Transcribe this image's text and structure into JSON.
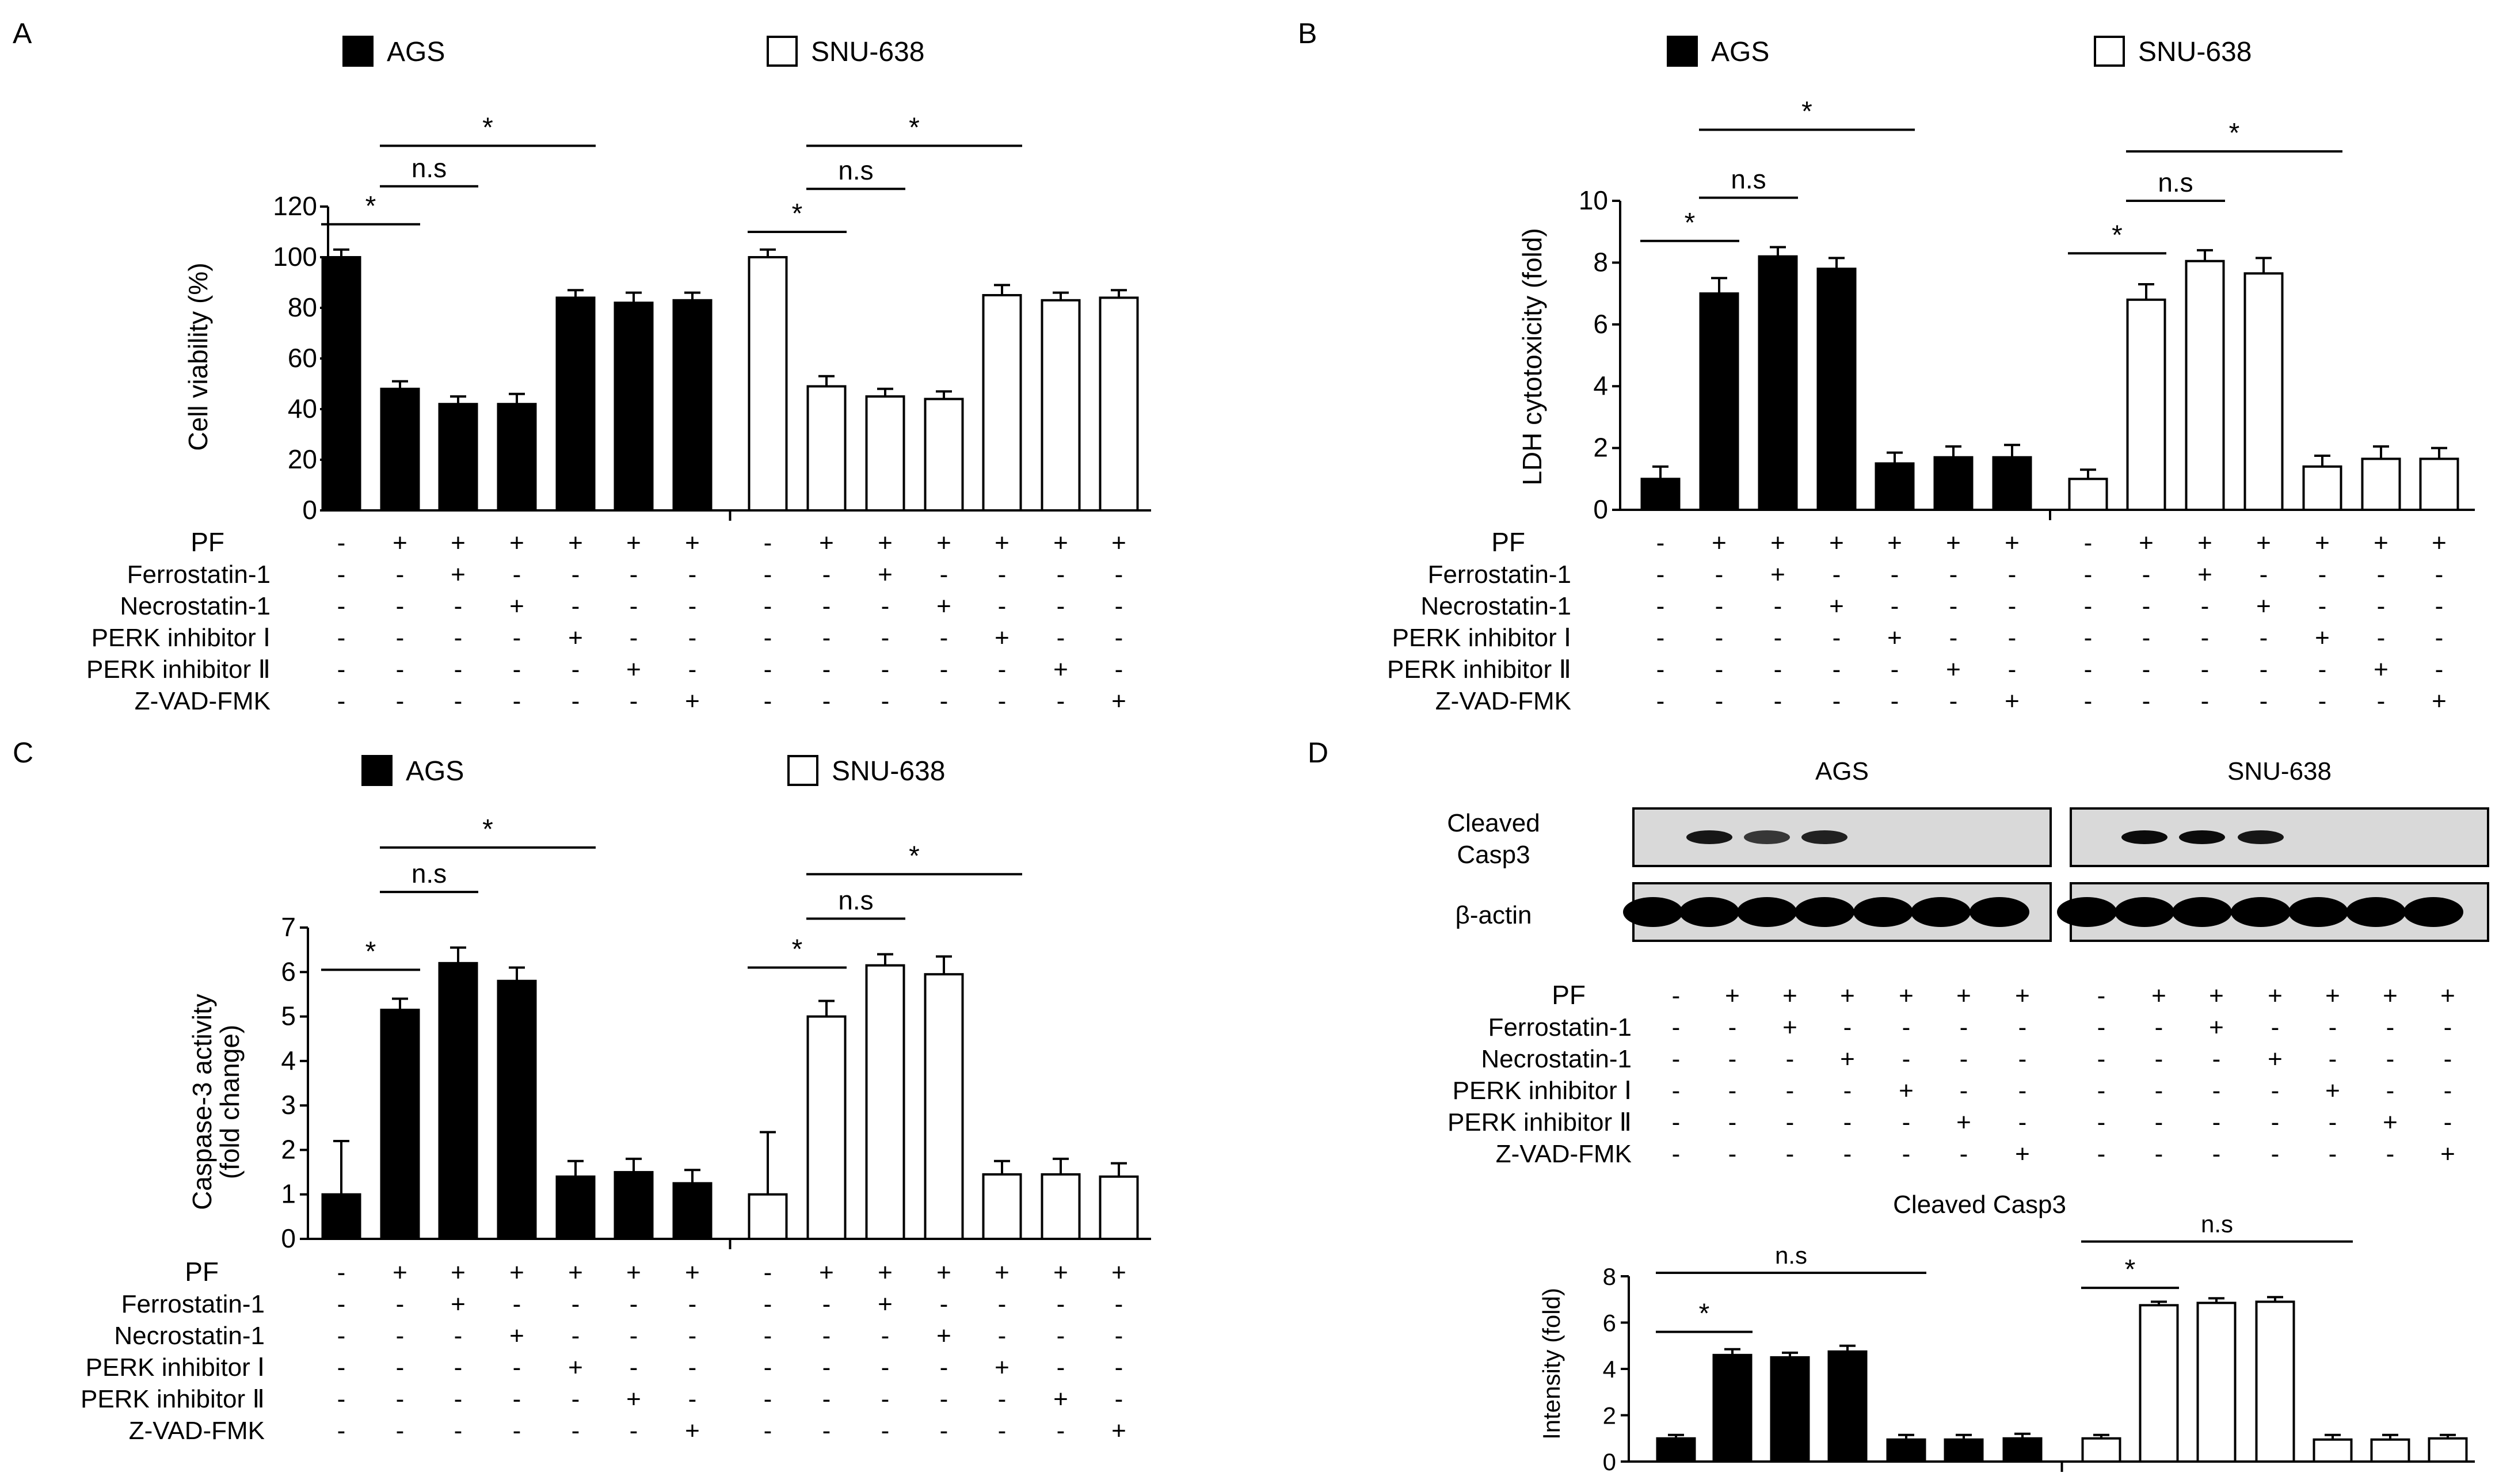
{
  "colors": {
    "AGS": "#000000",
    "SNU-638": "#ffffff",
    "stroke": "#000000",
    "blot_bg": "#d9d9d9"
  },
  "treatment_rows": [
    "PF",
    "Ferrostatin-1",
    "Necrostatin-1",
    "PERK inhibitor Ⅰ",
    "PERK inhibitor Ⅱ",
    "Z-VAD-FMK"
  ],
  "treatment_matrix": [
    [
      "-",
      "+",
      "+",
      "+",
      "+",
      "+",
      "+"
    ],
    [
      "-",
      "-",
      "+",
      "-",
      "-",
      "-",
      "-"
    ],
    [
      "-",
      "-",
      "-",
      "+",
      "-",
      "-",
      "-"
    ],
    [
      "-",
      "-",
      "-",
      "-",
      "+",
      "-",
      "-"
    ],
    [
      "-",
      "-",
      "-",
      "-",
      "-",
      "+",
      "-"
    ],
    [
      "-",
      "-",
      "-",
      "-",
      "-",
      "-",
      "+"
    ]
  ],
  "chart_data": [
    {
      "panel": "A",
      "type": "bar",
      "title": "",
      "legend": [
        "AGS",
        "SNU-638"
      ],
      "ylabel": "Cell viability (%)",
      "ylim": [
        0,
        120
      ],
      "yticks": [
        0,
        20,
        40,
        60,
        80,
        100,
        120
      ],
      "series": [
        {
          "name": "AGS",
          "values": [
            100,
            48,
            42,
            42,
            84,
            82,
            83
          ],
          "errors": [
            3,
            3,
            3,
            4,
            3,
            4,
            3
          ]
        },
        {
          "name": "SNU-638",
          "values": [
            100,
            49,
            45,
            44,
            85,
            83,
            84
          ],
          "errors": [
            3,
            4,
            3,
            3,
            4,
            3,
            3
          ]
        }
      ],
      "annotations": [
        {
          "series": 0,
          "from": 0,
          "to": 1,
          "label": "*",
          "value": 113
        },
        {
          "series": 0,
          "from": 1,
          "to": 2,
          "label": "n.s",
          "value": 128
        },
        {
          "series": 0,
          "from": 1,
          "to": 4,
          "label": "*",
          "value": 144
        },
        {
          "series": 1,
          "from": 0,
          "to": 1,
          "label": "*",
          "value": 110
        },
        {
          "series": 1,
          "from": 1,
          "to": 2,
          "label": "n.s",
          "value": 127
        },
        {
          "series": 1,
          "from": 1,
          "to": 4,
          "label": "*",
          "value": 144
        }
      ]
    },
    {
      "panel": "B",
      "type": "bar",
      "title": "",
      "legend": [
        "AGS",
        "SNU-638"
      ],
      "ylabel": "LDH cytotoxicity (fold)",
      "ylim": [
        0,
        10
      ],
      "yticks": [
        0,
        2,
        4,
        6,
        8,
        10
      ],
      "series": [
        {
          "name": "AGS",
          "values": [
            1,
            7,
            8.2,
            7.8,
            1.5,
            1.7,
            1.7
          ],
          "errors": [
            0.4,
            0.5,
            0.3,
            0.35,
            0.35,
            0.35,
            0.4
          ]
        },
        {
          "name": "SNU-638",
          "values": [
            1,
            6.8,
            8.05,
            7.65,
            1.4,
            1.65,
            1.65
          ],
          "errors": [
            0.3,
            0.5,
            0.35,
            0.5,
            0.35,
            0.4,
            0.35
          ]
        }
      ],
      "annotations": [
        {
          "series": 0,
          "from": 0,
          "to": 1,
          "label": "*",
          "value": 8.7
        },
        {
          "series": 0,
          "from": 1,
          "to": 2,
          "label": "n.s",
          "value": 10.1
        },
        {
          "series": 0,
          "from": 1,
          "to": 4,
          "label": "*",
          "value": 12.3
        },
        {
          "series": 1,
          "from": 0,
          "to": 1,
          "label": "*",
          "value": 8.3
        },
        {
          "series": 1,
          "from": 1,
          "to": 2,
          "label": "n.s",
          "value": 10.0
        },
        {
          "series": 1,
          "from": 1,
          "to": 4,
          "label": "*",
          "value": 11.6
        }
      ]
    },
    {
      "panel": "C",
      "type": "bar",
      "title": "",
      "legend": [
        "AGS",
        "SNU-638"
      ],
      "ylabel": "Caspase-3 activity (fold change)",
      "ylim": [
        0,
        7
      ],
      "yticks": [
        0,
        1,
        2,
        3,
        4,
        5,
        6,
        7
      ],
      "series": [
        {
          "name": "AGS",
          "values": [
            1,
            5.15,
            6.2,
            5.8,
            1.4,
            1.5,
            1.25
          ],
          "errors": [
            1.2,
            0.25,
            0.35,
            0.3,
            0.35,
            0.3,
            0.3
          ]
        },
        {
          "name": "SNU-638",
          "values": [
            1,
            5,
            6.15,
            5.95,
            1.45,
            1.45,
            1.4
          ],
          "errors": [
            1.4,
            0.35,
            0.25,
            0.4,
            0.3,
            0.35,
            0.3
          ]
        }
      ],
      "annotations": [
        {
          "series": 0,
          "from": 0,
          "to": 1,
          "label": "*",
          "value": 6.05
        },
        {
          "series": 0,
          "from": 1,
          "to": 2,
          "label": "n.s",
          "value": 7.8
        },
        {
          "series": 0,
          "from": 1,
          "to": 4,
          "label": "*",
          "value": 8.8
        },
        {
          "series": 1,
          "from": 0,
          "to": 1,
          "label": "*",
          "value": 6.1
        },
        {
          "series": 1,
          "from": 1,
          "to": 2,
          "label": "n.s",
          "value": 7.2
        },
        {
          "series": 1,
          "from": 1,
          "to": 4,
          "label": "*",
          "value": 8.2
        }
      ]
    },
    {
      "panel": "D",
      "type": "bar",
      "title": "Cleaved  Casp3",
      "ylabel": "Intensity (fold)",
      "ylim": [
        0,
        8
      ],
      "yticks": [
        0,
        2,
        4,
        6,
        8
      ],
      "series": [
        {
          "name": "AGS",
          "values": [
            1,
            4.6,
            4.5,
            4.75,
            0.95,
            0.95,
            1.0
          ],
          "errors": [
            0.15,
            0.25,
            0.2,
            0.25,
            0.2,
            0.2,
            0.2
          ]
        },
        {
          "name": "SNU-638",
          "values": [
            1,
            6.75,
            6.85,
            6.9,
            0.95,
            0.95,
            1.0
          ],
          "errors": [
            0.15,
            0.15,
            0.2,
            0.2,
            0.2,
            0.2,
            0.15
          ]
        }
      ],
      "annotations": [
        {
          "series": 0,
          "from": 0,
          "to": 1,
          "label": "*",
          "value": 5.6
        },
        {
          "series": 0,
          "from": 0,
          "to": 4,
          "label": "n.s",
          "value": 8.15
        },
        {
          "series": 1,
          "from": 0,
          "to": 1,
          "label": "*",
          "value": 7.5
        },
        {
          "series": 1,
          "from": 0,
          "to": 4,
          "label": "n.s",
          "value": 9.5
        }
      ]
    }
  ],
  "blot": {
    "group_labels": [
      "AGS",
      "SNU-638"
    ],
    "row_labels": [
      "Cleaved\nCasp3",
      "β-actin"
    ],
    "cleaved_casp3_intensity": [
      [
        0,
        0.9,
        0.75,
        0.85,
        0,
        0,
        0
      ],
      [
        0,
        0.95,
        0.95,
        0.9,
        0,
        0,
        0
      ]
    ],
    "beta_actin_intensity": [
      [
        1,
        1,
        1,
        1,
        1,
        1,
        1
      ],
      [
        1,
        1,
        1,
        1,
        1,
        1,
        1
      ]
    ]
  }
}
